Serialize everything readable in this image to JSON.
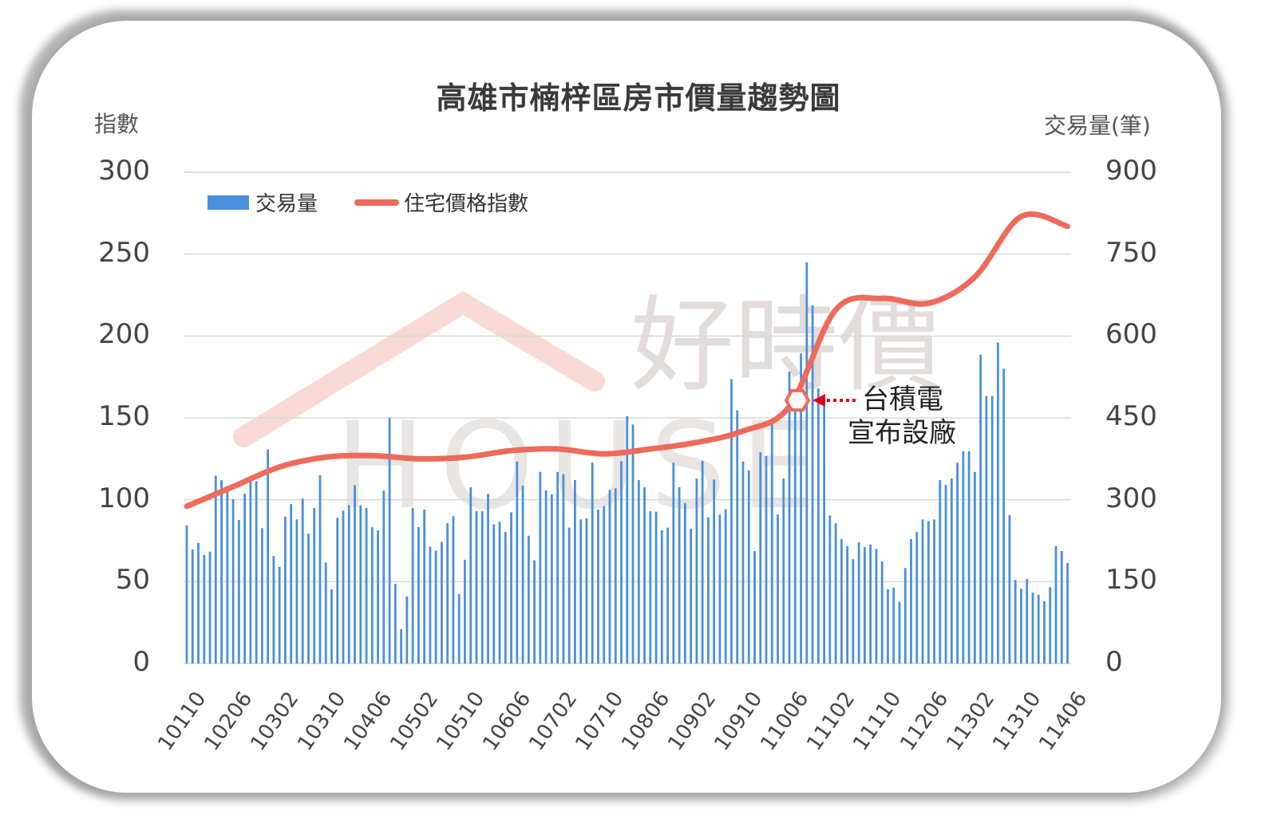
{
  "chart_data": {
    "type": "bar+line",
    "title": "高雄市楠梓區房市價量趨勢圖",
    "ylabel_left": "指數",
    "ylabel_right": "交易量(筆)",
    "ylim_left": [
      0,
      300
    ],
    "ylim_right": [
      0,
      900
    ],
    "yticks_left": [
      "300",
      "250",
      "200",
      "150",
      "100",
      "50",
      "0"
    ],
    "yticks_right": [
      "900",
      "750",
      "600",
      "450",
      "300",
      "150",
      "0"
    ],
    "xtick_labels": [
      "10110",
      "10206",
      "10302",
      "10310",
      "10406",
      "10502",
      "10510",
      "10606",
      "10702",
      "10710",
      "10806",
      "10902",
      "10910",
      "11006",
      "11102",
      "11110",
      "11206",
      "11302",
      "11310",
      "11406"
    ],
    "grid": true,
    "legend_position": "top-left",
    "series": [
      {
        "name": "交易量",
        "type": "bar",
        "axis": "right",
        "color": "#4a8fdc",
        "start": "10110",
        "end": "11406",
        "values": [
          253,
          209,
          221,
          199,
          205,
          344,
          336,
          323,
          301,
          263,
          311,
          336,
          334,
          248,
          392,
          197,
          177,
          269,
          292,
          264,
          302,
          238,
          285,
          345,
          185,
          136,
          267,
          280,
          290,
          327,
          290,
          285,
          250,
          244,
          317,
          450,
          146,
          63,
          123,
          285,
          250,
          282,
          214,
          207,
          223,
          257,
          270,
          127,
          190,
          323,
          279,
          279,
          311,
          255,
          260,
          241,
          277,
          370,
          326,
          234,
          189,
          351,
          317,
          310,
          351,
          347,
          249,
          336,
          264,
          266,
          368,
          282,
          288,
          318,
          321,
          371,
          453,
          438,
          336,
          323,
          279,
          278,
          244,
          249,
          368,
          323,
          294,
          247,
          339,
          371,
          268,
          337,
          273,
          283,
          521,
          464,
          370,
          354,
          206,
          387,
          380,
          440,
          273,
          339,
          535,
          488,
          568,
          735,
          656,
          504,
          475,
          271,
          257,
          228,
          215,
          191,
          222,
          213,
          218,
          210,
          187,
          136,
          139,
          113,
          175,
          228,
          241,
          264,
          261,
          264,
          336,
          327,
          339,
          368,
          389,
          389,
          351,
          566,
          490,
          490,
          588,
          540,
          272,
          153,
          137,
          155,
          130,
          126,
          114,
          140,
          215,
          206,
          184
        ]
      },
      {
        "name": "住宅價格指數",
        "type": "line",
        "axis": "left",
        "color": "#ee6a5b",
        "x_labels": [
          "10110",
          "10206",
          "10302",
          "10310",
          "10406",
          "10502",
          "10510",
          "10606",
          "10702",
          "10710",
          "10806",
          "10902",
          "10910",
          "11006",
          "11102",
          "11110",
          "11206",
          "11302",
          "11310",
          "11406"
        ],
        "values": [
          96,
          108,
          120,
          126,
          127,
          125,
          126,
          130,
          131,
          128,
          131,
          135,
          142,
          157,
          216,
          223,
          220,
          236,
          273,
          267
        ]
      }
    ],
    "annotation": {
      "text_line1": "台積電",
      "text_line2": "宣布設廠",
      "at": "11007",
      "marker": "hexagon"
    },
    "watermark": "好時價 HOUSE"
  }
}
